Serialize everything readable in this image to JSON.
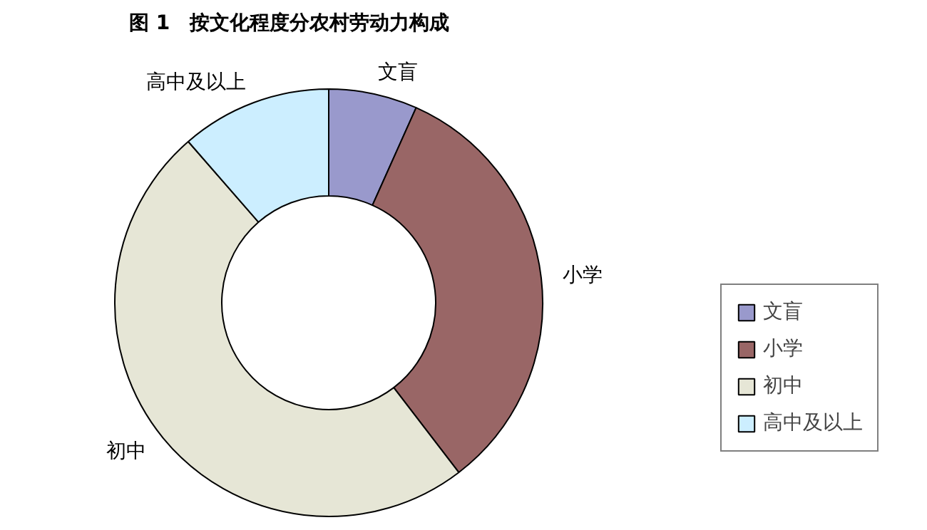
{
  "chart_data": {
    "type": "donut",
    "title": "图 1　按文化程度分农村劳动力构成",
    "categories": [
      "文盲",
      "小学",
      "初中",
      "高中及以上"
    ],
    "values": [
      6.7,
      32.9,
      49.0,
      11.4
    ],
    "colors": [
      "#9999cc",
      "#996666",
      "#e6e6d6",
      "#cceeff"
    ],
    "legend": "right"
  }
}
